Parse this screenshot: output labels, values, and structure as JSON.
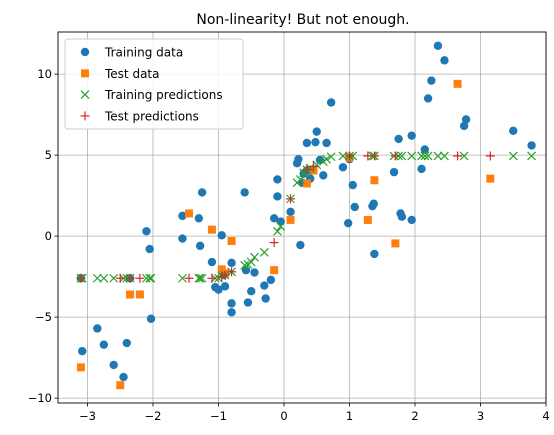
{
  "chart_data": {
    "type": "scatter",
    "title": "Non-linearity! But not enough.",
    "xlabel": "",
    "ylabel": "",
    "xlim": [
      -3.45,
      4.0
    ],
    "ylim": [
      -10.3,
      12.6
    ],
    "xticks": [
      -3,
      -2,
      -1,
      0,
      1,
      2,
      3,
      4
    ],
    "yticks": [
      -10,
      -5,
      0,
      5,
      10
    ],
    "grid": true,
    "legend": "upper-left",
    "series": [
      {
        "name": "Training data",
        "marker": "circle",
        "color": "#1f77b4",
        "points": [
          [
            -3.1,
            -2.6
          ],
          [
            -3.08,
            -7.1
          ],
          [
            -2.85,
            -5.7
          ],
          [
            -2.75,
            -6.7
          ],
          [
            -2.6,
            -7.95
          ],
          [
            -2.45,
            -8.7
          ],
          [
            -2.4,
            -6.6
          ],
          [
            -2.35,
            -2.6
          ],
          [
            -2.1,
            0.3
          ],
          [
            -2.05,
            -0.8
          ],
          [
            -2.03,
            -5.1
          ],
          [
            -1.55,
            -0.15
          ],
          [
            -1.55,
            1.25
          ],
          [
            -1.3,
            1.1
          ],
          [
            -1.28,
            -0.6
          ],
          [
            -1.25,
            2.7
          ],
          [
            -1.1,
            -1.6
          ],
          [
            -1.05,
            -3.15
          ],
          [
            -1.0,
            -3.3
          ],
          [
            -0.95,
            0.05
          ],
          [
            -0.92,
            -2.4
          ],
          [
            -0.9,
            -3.1
          ],
          [
            -0.8,
            -1.65
          ],
          [
            -0.8,
            -4.15
          ],
          [
            -0.8,
            -4.7
          ],
          [
            -0.6,
            2.7
          ],
          [
            -0.58,
            -2.1
          ],
          [
            -0.55,
            -4.1
          ],
          [
            -0.5,
            -3.4
          ],
          [
            -0.45,
            -2.25
          ],
          [
            -0.3,
            -3.05
          ],
          [
            -0.28,
            -3.85
          ],
          [
            -0.2,
            -2.7
          ],
          [
            -0.15,
            1.1
          ],
          [
            -0.1,
            3.5
          ],
          [
            -0.1,
            2.45
          ],
          [
            -0.05,
            0.9
          ],
          [
            0.1,
            1.5
          ],
          [
            0.2,
            4.5
          ],
          [
            0.22,
            4.75
          ],
          [
            0.25,
            -0.55
          ],
          [
            0.28,
            3.3
          ],
          [
            0.3,
            3.85
          ],
          [
            0.35,
            4.05
          ],
          [
            0.35,
            5.75
          ],
          [
            0.4,
            3.55
          ],
          [
            0.48,
            5.8
          ],
          [
            0.5,
            6.45
          ],
          [
            0.55,
            4.7
          ],
          [
            0.6,
            3.75
          ],
          [
            0.65,
            5.75
          ],
          [
            0.72,
            8.25
          ],
          [
            0.9,
            4.25
          ],
          [
            0.98,
            0.8
          ],
          [
            1.0,
            4.75
          ],
          [
            1.05,
            3.15
          ],
          [
            1.08,
            1.8
          ],
          [
            1.35,
            1.85
          ],
          [
            1.37,
            2.0
          ],
          [
            1.38,
            -1.1
          ],
          [
            1.68,
            3.95
          ],
          [
            1.75,
            6.0
          ],
          [
            1.78,
            1.4
          ],
          [
            1.8,
            1.2
          ],
          [
            1.95,
            1.0
          ],
          [
            1.95,
            6.2
          ],
          [
            2.1,
            4.15
          ],
          [
            2.15,
            5.35
          ],
          [
            2.2,
            8.5
          ],
          [
            2.25,
            9.6
          ],
          [
            2.35,
            11.75
          ],
          [
            2.45,
            10.85
          ],
          [
            2.75,
            6.8
          ],
          [
            2.78,
            7.2
          ],
          [
            3.5,
            6.5
          ],
          [
            3.78,
            5.6
          ]
        ]
      },
      {
        "name": "Test data",
        "marker": "square",
        "color": "#ff7f0e",
        "points": [
          [
            -3.1,
            -8.1
          ],
          [
            -2.5,
            -9.2
          ],
          [
            -2.35,
            -3.6
          ],
          [
            -2.2,
            -3.6
          ],
          [
            -1.45,
            1.4
          ],
          [
            -0.95,
            -2.05
          ],
          [
            -0.9,
            -2.3
          ],
          [
            -0.8,
            -0.3
          ],
          [
            -1.1,
            0.4
          ],
          [
            -0.15,
            -2.1
          ],
          [
            0.1,
            1.0
          ],
          [
            0.35,
            3.25
          ],
          [
            0.45,
            4.05
          ],
          [
            1.0,
            4.85
          ],
          [
            1.28,
            1.0
          ],
          [
            1.38,
            3.45
          ],
          [
            1.7,
            -0.45
          ],
          [
            2.65,
            9.4
          ],
          [
            3.15,
            3.55
          ]
        ]
      },
      {
        "name": "Training predictions",
        "marker": "x",
        "color": "#2ca02c",
        "points": [
          [
            -3.1,
            -2.6
          ],
          [
            -3.08,
            -2.6
          ],
          [
            -2.85,
            -2.6
          ],
          [
            -2.75,
            -2.6
          ],
          [
            -2.6,
            -2.6
          ],
          [
            -2.45,
            -2.6
          ],
          [
            -2.4,
            -2.6
          ],
          [
            -2.35,
            -2.6
          ],
          [
            -2.1,
            -2.6
          ],
          [
            -2.05,
            -2.6
          ],
          [
            -2.03,
            -2.6
          ],
          [
            -1.55,
            -2.6
          ],
          [
            -1.3,
            -2.6
          ],
          [
            -1.28,
            -2.6
          ],
          [
            -1.25,
            -2.6
          ],
          [
            -1.05,
            -2.6
          ],
          [
            -1.0,
            -2.6
          ],
          [
            -0.95,
            -2.45
          ],
          [
            -0.9,
            -2.4
          ],
          [
            -0.8,
            -2.2
          ],
          [
            -0.6,
            -1.8
          ],
          [
            -0.55,
            -1.75
          ],
          [
            -0.5,
            -1.6
          ],
          [
            -0.45,
            -1.3
          ],
          [
            -0.3,
            -1.0
          ],
          [
            -0.1,
            0.3
          ],
          [
            -0.05,
            0.6
          ],
          [
            0.1,
            2.3
          ],
          [
            0.2,
            3.3
          ],
          [
            0.25,
            3.5
          ],
          [
            0.3,
            3.9
          ],
          [
            0.35,
            4.1
          ],
          [
            0.4,
            4.2
          ],
          [
            0.5,
            4.4
          ],
          [
            0.6,
            4.6
          ],
          [
            0.65,
            4.75
          ],
          [
            0.72,
            4.9
          ],
          [
            0.9,
            4.95
          ],
          [
            1.0,
            4.95
          ],
          [
            1.05,
            4.95
          ],
          [
            1.35,
            4.95
          ],
          [
            1.38,
            4.95
          ],
          [
            1.68,
            4.95
          ],
          [
            1.75,
            4.95
          ],
          [
            1.8,
            4.95
          ],
          [
            1.95,
            4.95
          ],
          [
            2.1,
            4.95
          ],
          [
            2.15,
            4.95
          ],
          [
            2.2,
            4.95
          ],
          [
            2.35,
            4.95
          ],
          [
            2.45,
            4.95
          ],
          [
            2.75,
            4.95
          ],
          [
            3.5,
            4.95
          ],
          [
            3.78,
            4.95
          ]
        ]
      },
      {
        "name": "Test predictions",
        "marker": "plus",
        "color": "#d62728",
        "points": [
          [
            -3.1,
            -2.6
          ],
          [
            -2.5,
            -2.6
          ],
          [
            -2.35,
            -2.6
          ],
          [
            -2.2,
            -2.6
          ],
          [
            -1.45,
            -2.6
          ],
          [
            -1.1,
            -2.6
          ],
          [
            -0.95,
            -2.5
          ],
          [
            -0.9,
            -2.4
          ],
          [
            -0.8,
            -2.2
          ],
          [
            -0.15,
            -0.4
          ],
          [
            0.1,
            2.3
          ],
          [
            0.35,
            4.1
          ],
          [
            0.45,
            4.3
          ],
          [
            1.0,
            4.95
          ],
          [
            1.28,
            4.95
          ],
          [
            1.38,
            4.95
          ],
          [
            1.7,
            4.95
          ],
          [
            2.65,
            4.95
          ],
          [
            3.15,
            4.95
          ]
        ]
      }
    ]
  }
}
